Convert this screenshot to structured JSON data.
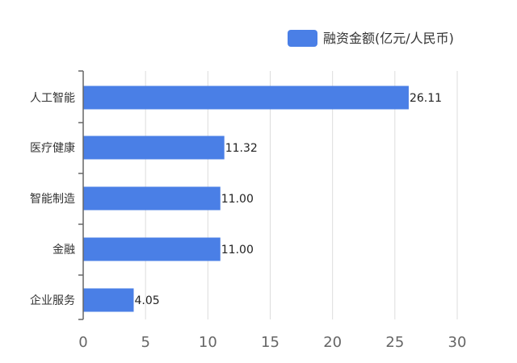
{
  "chart_data": {
    "type": "bar",
    "orientation": "horizontal",
    "categories": [
      "人工智能",
      "医疗健康",
      "智能制造",
      "金融",
      "企业服务"
    ],
    "series": [
      {
        "name": "融资金额(亿元/人民币)",
        "values": [
          26.11,
          11.32,
          11.0,
          11.0,
          4.05
        ],
        "value_labels": [
          "26.11",
          "11.32",
          "11.00",
          "11.00",
          "4.05"
        ],
        "color": "#4a7fe6"
      }
    ],
    "x_ticks": [
      "0",
      "5",
      "10",
      "15",
      "20",
      "25",
      "30"
    ],
    "xlim": [
      0,
      30
    ],
    "grid": true,
    "legend_position": "top-right"
  }
}
